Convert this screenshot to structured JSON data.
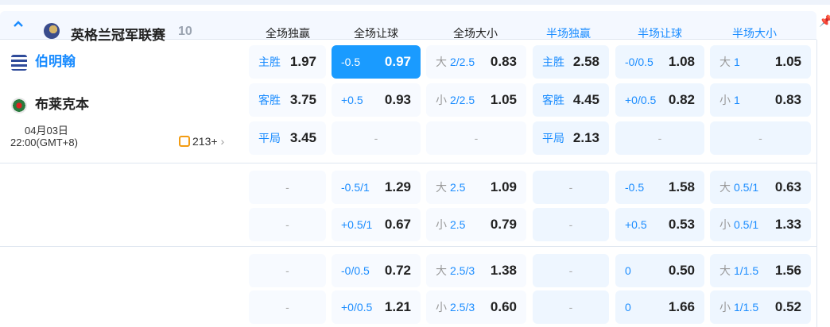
{
  "league": {
    "name": "英格兰冠军联赛",
    "count": "10"
  },
  "columns": [
    "全场独赢",
    "全场让球",
    "全场大小",
    "半场独赢",
    "半场让球",
    "半场大小"
  ],
  "colors": {
    "accent": "#1a9bff",
    "full_header": "#222222",
    "half_header": "#1a8cff"
  },
  "match": {
    "home": "伯明翰",
    "away": "布莱克本",
    "date": "04月03日",
    "time": "22:00(GMT+8)",
    "markets": "213+"
  },
  "groups": [
    [
      [
        {
          "tag": "主胜",
          "odds": "1.97"
        },
        {
          "line": "-0.5",
          "odds": "0.97",
          "selected": true
        },
        {
          "tag": "大",
          "line": "2/2.5",
          "odds": "0.83"
        },
        {
          "tag": "主胜",
          "odds": "2.58"
        },
        {
          "line": "-0/0.5",
          "odds": "1.08"
        },
        {
          "tag": "大",
          "line": "1",
          "odds": "1.05"
        }
      ],
      [
        {
          "tag": "客胜",
          "odds": "3.75"
        },
        {
          "line": "+0.5",
          "odds": "0.93"
        },
        {
          "tag": "小",
          "line": "2/2.5",
          "odds": "1.05"
        },
        {
          "tag": "客胜",
          "odds": "4.45"
        },
        {
          "line": "+0/0.5",
          "odds": "0.82"
        },
        {
          "tag": "小",
          "line": "1",
          "odds": "0.83"
        }
      ],
      [
        {
          "tag": "平局",
          "odds": "3.45"
        },
        {
          "empty": "-"
        },
        {
          "empty": "-"
        },
        {
          "tag": "平局",
          "odds": "2.13"
        },
        {
          "empty": "-"
        },
        {
          "empty": "-"
        }
      ]
    ],
    [
      [
        {
          "empty": "-"
        },
        {
          "line": "-0.5/1",
          "odds": "1.29"
        },
        {
          "tag": "大",
          "line": "2.5",
          "odds": "1.09"
        },
        {
          "empty": "-"
        },
        {
          "line": "-0.5",
          "odds": "1.58"
        },
        {
          "tag": "大",
          "line": "0.5/1",
          "odds": "0.63"
        }
      ],
      [
        {
          "empty": "-"
        },
        {
          "line": "+0.5/1",
          "odds": "0.67"
        },
        {
          "tag": "小",
          "line": "2.5",
          "odds": "0.79"
        },
        {
          "empty": "-"
        },
        {
          "line": "+0.5",
          "odds": "0.53"
        },
        {
          "tag": "小",
          "line": "0.5/1",
          "odds": "1.33"
        }
      ]
    ],
    [
      [
        {
          "empty": "-"
        },
        {
          "line": "-0/0.5",
          "odds": "0.72"
        },
        {
          "tag": "大",
          "line": "2.5/3",
          "odds": "1.38"
        },
        {
          "empty": "-"
        },
        {
          "line": "0",
          "odds": "0.50"
        },
        {
          "tag": "大",
          "line": "1/1.5",
          "odds": "1.56"
        }
      ],
      [
        {
          "empty": "-"
        },
        {
          "line": "+0/0.5",
          "odds": "1.21"
        },
        {
          "tag": "小",
          "line": "2.5/3",
          "odds": "0.60"
        },
        {
          "empty": "-"
        },
        {
          "line": "0",
          "odds": "1.66"
        },
        {
          "tag": "小",
          "line": "1/1.5",
          "odds": "0.52"
        }
      ]
    ]
  ]
}
